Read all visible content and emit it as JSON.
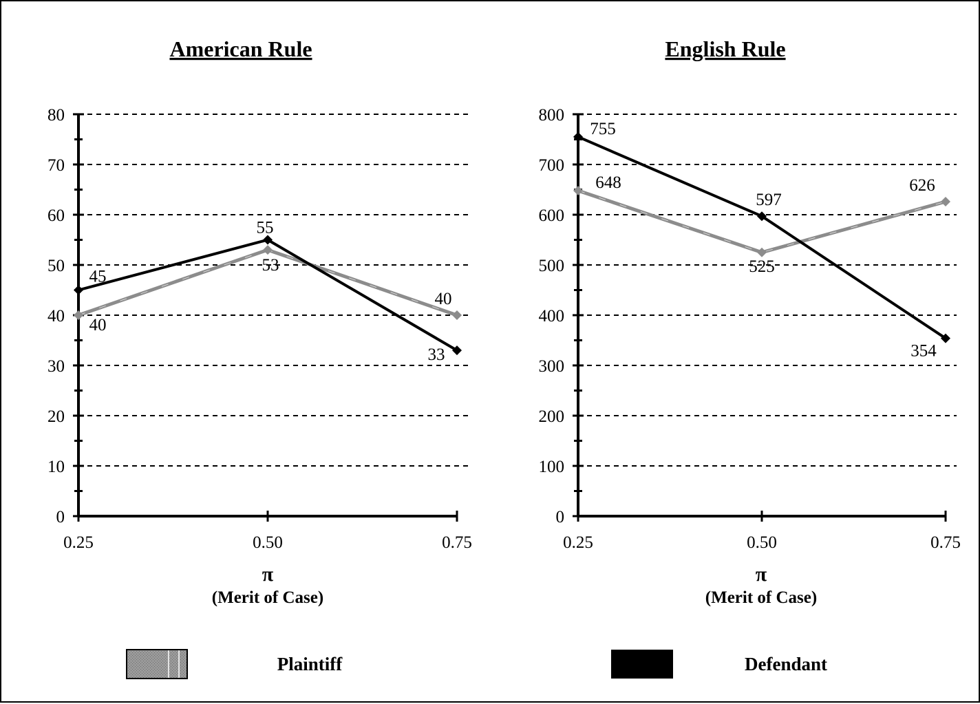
{
  "legend": [
    {
      "name": "Plaintiff",
      "color": "#8c8c8c"
    },
    {
      "name": "Defendant",
      "color": "#000000"
    }
  ],
  "chart_data": [
    {
      "type": "line",
      "title": "American Rule",
      "xlabel_symbol": "π",
      "xlabel": "(Merit of Case)",
      "ylabel": "",
      "categories": [
        "0.25",
        "0.50",
        "0.75"
      ],
      "ylim": [
        0,
        80
      ],
      "yticks": [
        0,
        10,
        20,
        30,
        40,
        50,
        60,
        70,
        80
      ],
      "grid": true,
      "series": [
        {
          "name": "Plaintiff",
          "color": "#8c8c8c",
          "values": [
            40,
            53,
            40
          ],
          "labels": [
            "40",
            "53",
            "40"
          ]
        },
        {
          "name": "Defendant",
          "color": "#000000",
          "values": [
            45,
            55,
            33
          ],
          "labels": [
            "45",
            "55",
            "33"
          ]
        }
      ]
    },
    {
      "type": "line",
      "title": "English Rule",
      "xlabel_symbol": "π",
      "xlabel": "(Merit of Case)",
      "ylabel": "",
      "categories": [
        "0.25",
        "0.50",
        "0.75"
      ],
      "ylim": [
        0,
        800
      ],
      "yticks": [
        0,
        100,
        200,
        300,
        400,
        500,
        600,
        700,
        800
      ],
      "grid": true,
      "series": [
        {
          "name": "Plaintiff",
          "color": "#8c8c8c",
          "values": [
            648,
            525,
            626
          ],
          "labels": [
            "648",
            "525",
            "626"
          ]
        },
        {
          "name": "Defendant",
          "color": "#000000",
          "values": [
            755,
            597,
            354
          ],
          "labels": [
            "755",
            "597",
            "354"
          ]
        }
      ]
    }
  ]
}
